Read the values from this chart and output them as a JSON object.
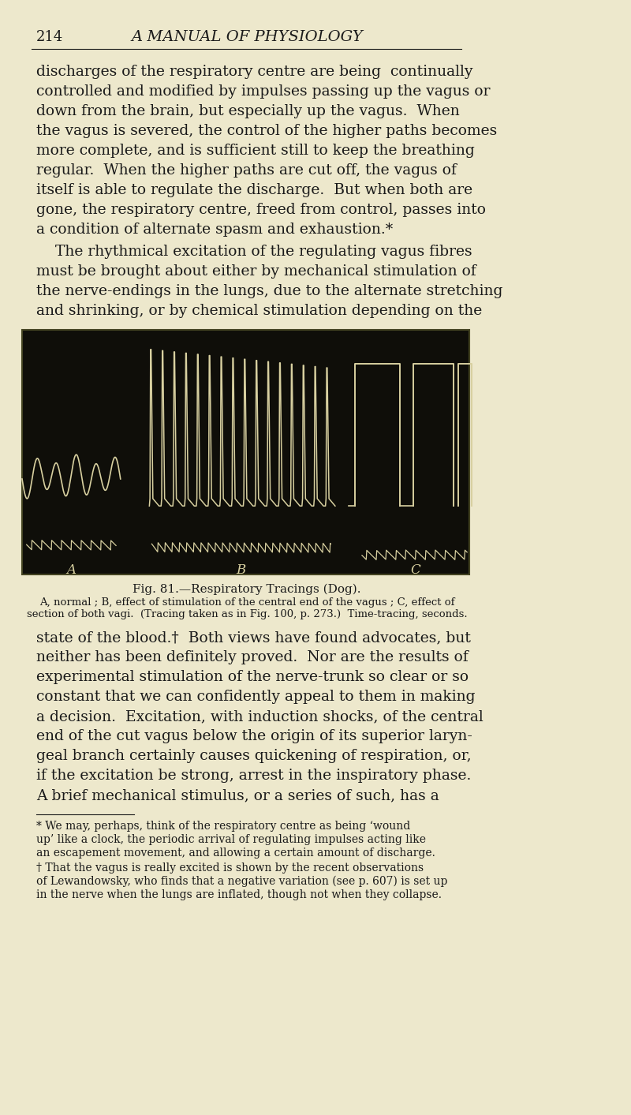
{
  "page_number": "214",
  "header_title": "A MANUAL OF PHYSIOLOGY",
  "bg_color": "#EDE8CC",
  "text_color": "#1a1a1a",
  "dark_bg": "#0f0e09",
  "trace_color": "#d8d0a0",
  "para1_lines": [
    "discharges of the respiratory centre are being  continually",
    "controlled and modified by impulses passing up the vagus or",
    "down from the brain, but especially up the vagus.  When",
    "the vagus is severed, the control of the higher paths becomes",
    "more complete, and is sufficient still to keep the breathing",
    "regular.  When the higher paths are cut off, the vagus of",
    "itself is able to regulate the discharge.  But when both are",
    "gone, the respiratory centre, freed from control, passes into",
    "a condition of alternate spasm and exhaustion.*"
  ],
  "para2_lines": [
    "    The rhythmical excitation of the regulating vagus fibres",
    "must be brought about either by mechanical stimulation of",
    "the nerve-endings in the lungs, due to the alternate stretching",
    "and shrinking, or by chemical stimulation depending on the"
  ],
  "fig_caption_title": "Fig. 81.—Respiratory Tracings (Dog).",
  "fig_caption_lines": [
    "A, normal ; B, effect of stimulation of the central end of the vagus ; C, effect of",
    "section of both vagi.  (Tracing taken as in Fig. 100, p. 273.)  Time-tracing, seconds."
  ],
  "para3_lines": [
    "state of the blood.†  Both views have found advocates, but",
    "neither has been definitely proved.  Nor are the results of",
    "experimental stimulation of the nerve-trunk so clear or so",
    "constant that we can confidently appeal to them in making",
    "a decision.  Excitation, with induction shocks, of the central",
    "end of the cut vagus below the origin of its superior laryn-",
    "geal branch certainly causes quickening of respiration, or,",
    "if the excitation be strong, arrest in the inspiratory phase.",
    "A brief mechanical stimulus, or a series of such, has a"
  ],
  "fn_line": [
    50,
    160
  ],
  "fn1_lines": [
    "* We may, perhaps, think of the respiratory centre as being ‘wound",
    "up’ like a clock, the periodic arrival of regulating impulses acting like",
    "an escapement movement, and allowing a certain amount of discharge."
  ],
  "fn2_lines": [
    "† That the vagus is really excited is shown by the recent observations",
    "of Lewandowsky, who finds that a negative variation (see p. 607) is set up",
    "in the nerve when the lungs are inflated, though not when they collapse."
  ]
}
